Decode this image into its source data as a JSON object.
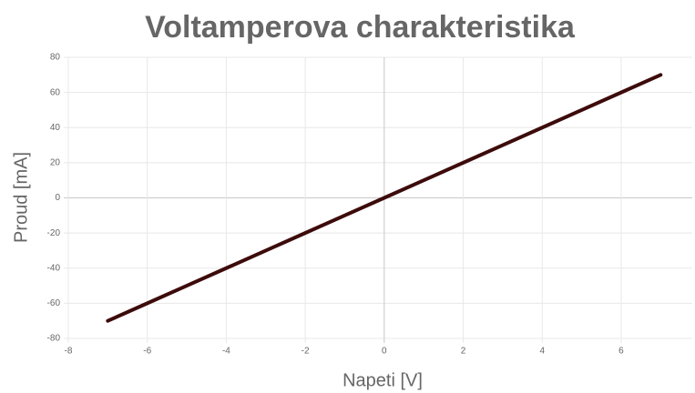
{
  "chart_data": {
    "type": "line",
    "title": "Voltamperova charakteristika",
    "xlabel": "Napeti [V]",
    "ylabel": "Proud [mA]",
    "x": [
      -7,
      -6,
      -5,
      -4,
      -3,
      -2,
      -1,
      0,
      1,
      2,
      3,
      4,
      5,
      6,
      7
    ],
    "series": [
      {
        "name": null,
        "color": "#3d0b0b",
        "values": [
          -70,
          -60,
          -50,
          -40,
          -30,
          -20,
          -10,
          0,
          10,
          20,
          30,
          40,
          50,
          60,
          70
        ]
      }
    ],
    "xlim": [
      -8,
      7.8
    ],
    "xticks": [
      -8,
      -6,
      -4,
      -2,
      0,
      2,
      4,
      6
    ],
    "ylim": [
      -80,
      80
    ],
    "yticks": [
      -80,
      -60,
      -40,
      -20,
      0,
      20,
      40,
      60,
      80
    ],
    "grid": true
  }
}
